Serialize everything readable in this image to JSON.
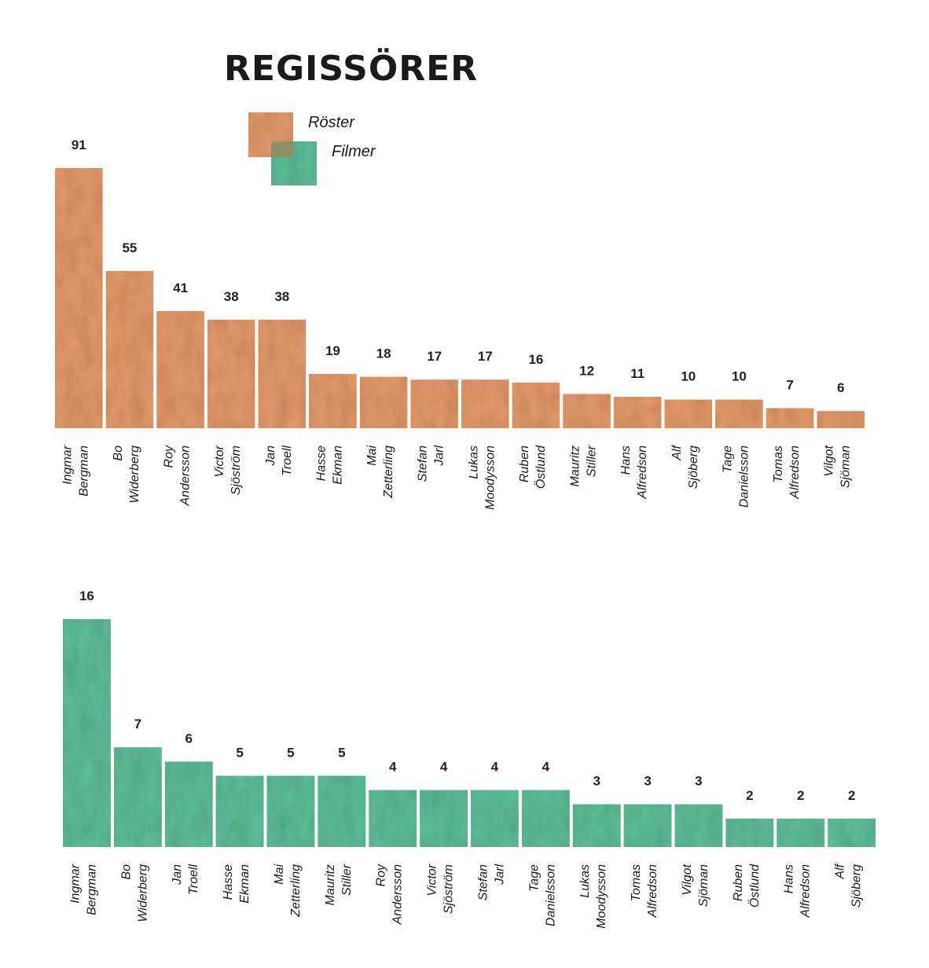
{
  "title": "REGISSÖRER",
  "legend": [
    {
      "label": "Röster",
      "color": "#e79a6c"
    },
    {
      "label": "Filmer",
      "color": "#5fbf9b"
    }
  ],
  "chart_data": [
    {
      "type": "bar",
      "name": "Röster",
      "color": "#e79a6c",
      "categories": [
        [
          "Ingmar",
          "Bergman"
        ],
        [
          "Bo",
          "Widerberg"
        ],
        [
          "Roy",
          "Andersson"
        ],
        [
          "Victor",
          "Sjöström"
        ],
        [
          "Jan",
          "Troell"
        ],
        [
          "Hasse",
          "Ekman"
        ],
        [
          "Mai",
          "Zetterling"
        ],
        [
          "Stefan",
          "Jarl"
        ],
        [
          "Lukas",
          "Moodysson"
        ],
        [
          "Ruben",
          "Östlund"
        ],
        [
          "Mauritz",
          "Stiller"
        ],
        [
          "Hans",
          "Alfredson"
        ],
        [
          "Alf",
          "Sjöberg"
        ],
        [
          "Tage",
          "Danielsson"
        ],
        [
          "Tomas",
          "Alfredson"
        ],
        [
          "Vilgot",
          "Sjöman"
        ]
      ],
      "values": [
        91,
        55,
        41,
        38,
        38,
        19,
        18,
        17,
        17,
        16,
        12,
        11,
        10,
        10,
        7,
        6
      ]
    },
    {
      "type": "bar",
      "name": "Filmer",
      "color": "#5fbf9b",
      "categories": [
        [
          "Ingmar",
          "Bergman"
        ],
        [
          "Bo",
          "Widerberg"
        ],
        [
          "Jan",
          "Troell"
        ],
        [
          "Hasse",
          "Ekman"
        ],
        [
          "Mai",
          "Zetterling"
        ],
        [
          "Mauritz",
          "Stiller"
        ],
        [
          "Roy",
          "Andersson"
        ],
        [
          "Victor",
          "Sjöström"
        ],
        [
          "Stefan",
          "Jarl"
        ],
        [
          "Tage",
          "Danielsson"
        ],
        [
          "Lukas",
          "Moodysson"
        ],
        [
          "Tomas",
          "Alfredson"
        ],
        [
          "Vilgot",
          "Sjöman"
        ],
        [
          "Ruben",
          "Östlund"
        ],
        [
          "Hans",
          "Alfredson"
        ],
        [
          "Alf",
          "Sjöberg"
        ]
      ],
      "values": [
        16,
        7,
        6,
        5,
        5,
        5,
        4,
        4,
        4,
        4,
        3,
        3,
        3,
        2,
        2,
        2
      ]
    }
  ]
}
